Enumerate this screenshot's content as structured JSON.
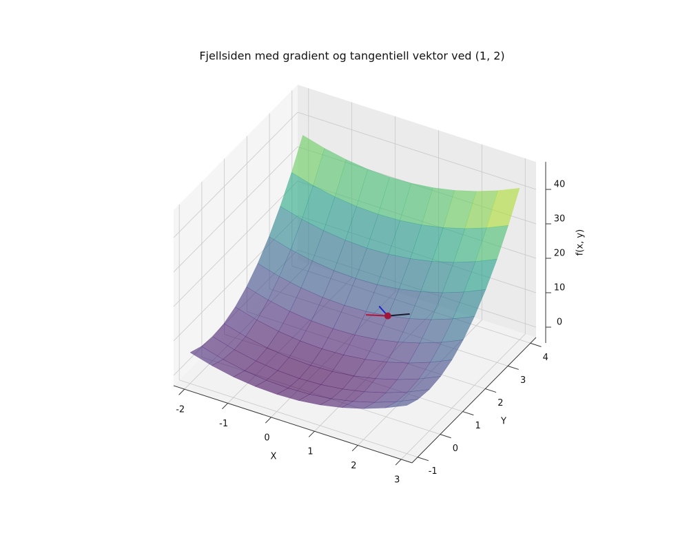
{
  "chart_data": {
    "type": "surface3d",
    "title": "Fjellsiden med gradient og tangentiell vektor ved (1, 2)",
    "xlabel": "X",
    "ylabel": "Y",
    "zlabel": "f(x, y)",
    "xlim": [
      -2.25,
      3.25
    ],
    "ylim": [
      -1.25,
      4.25
    ],
    "zlim": [
      -3,
      48
    ],
    "xticks": [
      -2,
      -1,
      0,
      1,
      2,
      3
    ],
    "yticks": [
      -1,
      0,
      1,
      2,
      3,
      4
    ],
    "zticks": [
      0,
      10,
      20,
      30,
      40
    ],
    "grid": true,
    "colormap": "viridis",
    "alpha": 0.6,
    "x": [
      -2,
      -1.5,
      -1,
      -0.5,
      0,
      0.5,
      1,
      1.5,
      2,
      2.5,
      3
    ],
    "y": [
      -1,
      -0.5,
      0,
      0.5,
      1,
      1.5,
      2,
      2.5,
      3,
      3.5,
      4
    ],
    "z": [
      [
        6,
        4.25,
        3,
        2.25,
        2,
        2.25,
        3,
        4.25,
        6,
        8.25,
        11
      ],
      [
        4.5,
        2.75,
        1.5,
        0.75,
        0.5,
        0.75,
        1.5,
        2.75,
        4.5,
        6.75,
        9.5
      ],
      [
        4,
        2.25,
        1,
        0.25,
        0,
        0.25,
        1,
        2.25,
        4,
        6.25,
        9
      ],
      [
        4.5,
        2.75,
        1.5,
        0.75,
        0.5,
        0.75,
        1.5,
        2.75,
        4.5,
        6.75,
        9.5
      ],
      [
        6,
        4.25,
        3,
        2.25,
        2,
        2.25,
        3,
        4.25,
        6,
        8.25,
        11
      ],
      [
        8.5,
        6.75,
        5.5,
        4.75,
        4.5,
        4.75,
        5.5,
        6.75,
        8.5,
        10.75,
        13.5
      ],
      [
        12,
        10.25,
        9,
        8.25,
        8,
        8.25,
        9,
        10.25,
        12,
        14.25,
        17
      ],
      [
        16.5,
        14.75,
        13.5,
        12.75,
        12.5,
        12.75,
        13.5,
        14.75,
        16.5,
        18.75,
        21.5
      ],
      [
        22,
        20.25,
        19,
        18.25,
        18,
        18.25,
        19,
        20.25,
        22,
        24.25,
        27
      ],
      [
        28.5,
        26.75,
        25.5,
        24.75,
        24.5,
        24.75,
        25.5,
        26.75,
        28.5,
        30.75,
        33.5
      ],
      [
        36,
        34.25,
        33,
        32.25,
        32,
        32.25,
        33,
        34.25,
        36,
        38.25,
        41
      ]
    ],
    "point": {
      "x": 1,
      "y": 2,
      "z": 9,
      "color": "#a0173a"
    },
    "vectors": [
      {
        "dx": -0.2,
        "dy": 0,
        "dz": 2,
        "color": "#2222cc"
      },
      {
        "dx": -0.4,
        "dy": -0.2,
        "dz": 0,
        "color": "#b0163a"
      },
      {
        "dx": 0.35,
        "dy": 0.3,
        "dz": 0,
        "color": "#1a1a2e"
      }
    ]
  }
}
